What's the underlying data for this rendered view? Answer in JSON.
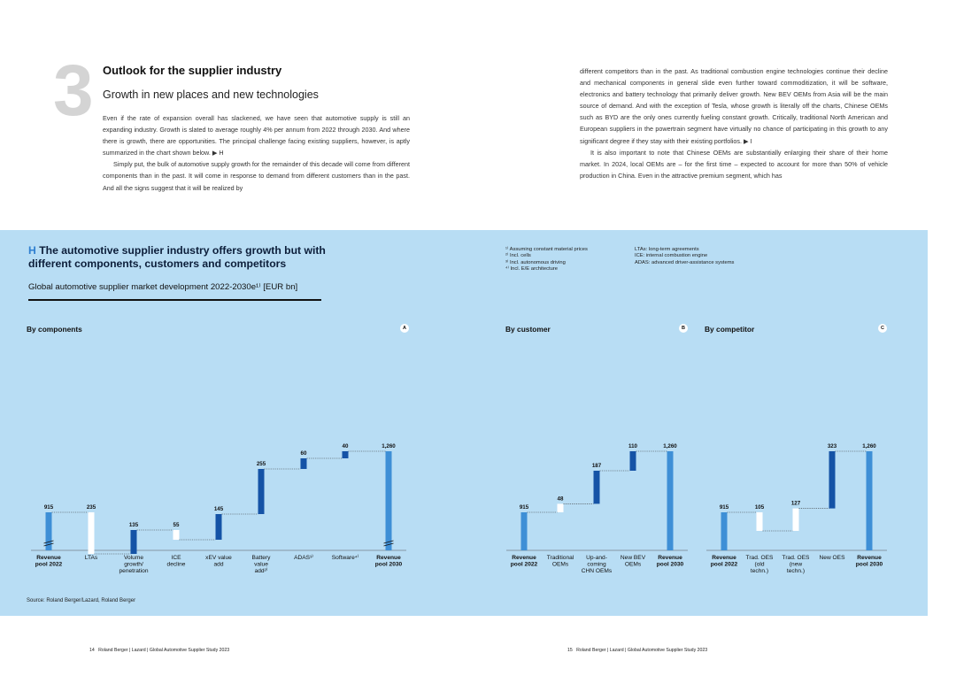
{
  "chapter": {
    "number": "3",
    "title": "Outlook for the supplier industry",
    "subtitle": "Growth in new places and new technologies"
  },
  "body": {
    "left_paragraphs": [
      "Even if the rate of expansion overall has slackened, we have seen that automotive supply is still an expanding industry. Growth is slated to average roughly 4% per annum from 2022 through 2030. And where there is growth, there are opportunities. The principal challenge facing existing suppliers, however, is aptly summarized in the chart shown below. ▶ H",
      "Simply put, the bulk of automotive supply growth for the remainder of this decade will come from different components than in the past. It will come in response to demand from different customers than in the past. And all the signs suggest that it will be realized by"
    ],
    "right_paragraphs": [
      "different competitors than in the past. As traditional combustion engine technologies continue their decline and mechanical components in general slide even further toward commoditization, it will be software, electronics and battery technology that primarily deliver growth. New BEV OEMs from Asia will be the main source of demand. And with the exception of Tesla, whose growth is literally off the charts, Chinese OEMs such as BYD are the only ones currently fueling constant growth. Critically, traditional North American and European suppliers in the powertrain segment have virtually no chance of participating in this growth to any significant degree if they stay with their existing portfolios. ▶ I",
      "It is also important to note that Chinese OEMs are substantially enlarging their share of their home market. In 2024, local OEMs are – for the first time – expected to account for more than 50% of vehicle production in China. Even in the attractive premium segment, which has"
    ]
  },
  "figure": {
    "letter": "H",
    "title": "The automotive supplier industry offers growth but with different components, customers and competitors",
    "subtitle": "Global automotive supplier market development 2022-2030e¹⁾ [EUR bn]",
    "footnotes": [
      "¹⁾ Assuming constant material prices",
      "²⁾ Incl. cells",
      "³⁾ Incl. autonomous driving",
      "⁴⁾ Incl. E/E architecture"
    ],
    "abbreviations": [
      "LTAs: long-term agreements",
      "ICE: internal combustion engine",
      "ADAS: advanced driver-assistance systems"
    ],
    "source": "Source: Roland Berger/Lazard, Roland Berger"
  },
  "colors": {
    "panel_bg": "#b8ddf4",
    "bar_total": "#3e8fd6",
    "bar_increase": "#1553a6",
    "bar_decrease": "#ffffff",
    "accent_letter": "#2f7fd0"
  },
  "chart_data": [
    {
      "type": "bar",
      "subtype": "waterfall",
      "title": "By components",
      "badge": "A",
      "categories": [
        "Revenue pool 2022",
        "LTAs",
        "Volume growth/ penetration",
        "ICE decline",
        "xEV value add",
        "Battery value add²⁾",
        "ADAS³⁾",
        "Software⁴⁾",
        "Revenue pool 2030"
      ],
      "bold_categories": [
        0,
        8
      ],
      "values": [
        915,
        -235,
        135,
        -55,
        145,
        255,
        60,
        40,
        1260
      ],
      "labels": [
        "915",
        "235",
        "135",
        "55",
        "145",
        "255",
        "60",
        "40",
        "1,260"
      ],
      "kinds": [
        "total",
        "decrease",
        "increase",
        "decrease",
        "increase",
        "increase",
        "increase",
        "increase",
        "total"
      ],
      "axis_break": true
    },
    {
      "type": "bar",
      "subtype": "waterfall",
      "title": "By customer",
      "badge": "B",
      "categories": [
        "Revenue pool 2022",
        "Traditional OEMs",
        "Up-and- coming CHN OEMs",
        "New BEV OEMs",
        "Revenue pool 2030"
      ],
      "bold_categories": [
        0,
        4
      ],
      "values": [
        915,
        48,
        187,
        110,
        1260
      ],
      "labels": [
        "915",
        "48",
        "187",
        "110",
        "1,260"
      ],
      "kinds": [
        "total",
        "light",
        "increase",
        "increase",
        "total"
      ]
    },
    {
      "type": "bar",
      "subtype": "waterfall",
      "title": "By competitor",
      "badge": "C",
      "categories": [
        "Revenue pool 2022",
        "Trad. OES (old techn.)",
        "Trad. OES (new techn.)",
        "New OES",
        "Revenue pool 2030"
      ],
      "bold_categories": [
        0,
        4
      ],
      "values": [
        915,
        -105,
        127,
        323,
        1260
      ],
      "labels": [
        "915",
        "105",
        "127",
        "323",
        "1,260"
      ],
      "kinds": [
        "total",
        "decrease",
        "light",
        "increase",
        "total"
      ]
    }
  ],
  "footer": {
    "left_page": "14",
    "left_text": "Roland Berger | Lazard | Global Automotive Supplier Study 2023",
    "right_page": "15",
    "right_text": "Roland Berger | Lazard | Global Automotive Supplier Study 2023"
  }
}
